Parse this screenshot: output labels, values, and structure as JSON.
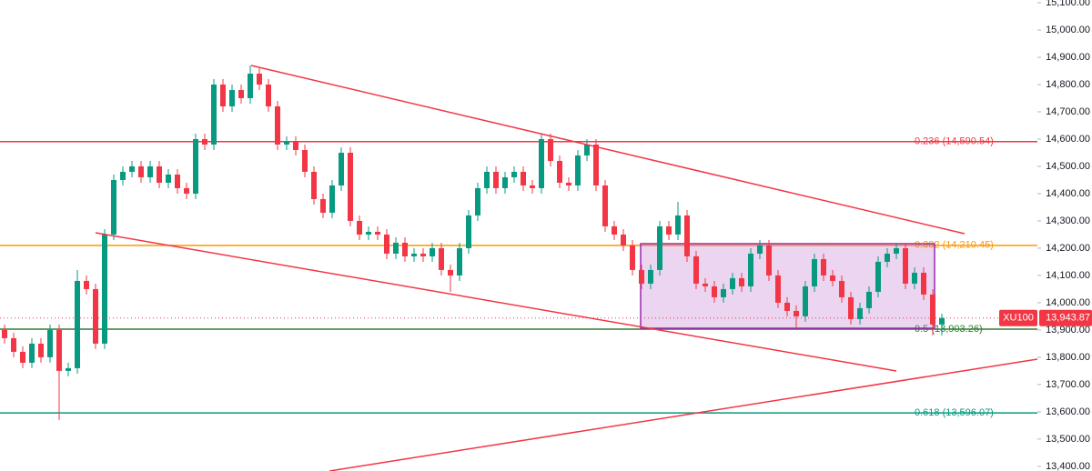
{
  "chart_data": {
    "type": "candlestick",
    "ylim": [
      13383,
      15110
    ],
    "yticks": [
      {
        "value": 13400,
        "label": "13,400.00"
      },
      {
        "value": 13500,
        "label": "13,500.00"
      },
      {
        "value": 13600,
        "label": "13,600.00"
      },
      {
        "value": 13700,
        "label": "13,700.00"
      },
      {
        "value": 13800,
        "label": "13,800.00"
      },
      {
        "value": 13900,
        "label": "13,900.00"
      },
      {
        "value": 14000,
        "label": "14,000.00"
      },
      {
        "value": 14100,
        "label": "14,100.00"
      },
      {
        "value": 14200,
        "label": "14,200.00"
      },
      {
        "value": 14300,
        "label": "14,300.00"
      },
      {
        "value": 14400,
        "label": "14,400.00"
      },
      {
        "value": 14500,
        "label": "14,500.00"
      },
      {
        "value": 14600,
        "label": "14,600.00"
      },
      {
        "value": 14700,
        "label": "14,700.00"
      },
      {
        "value": 14800,
        "label": "14,800.00"
      },
      {
        "value": 14900,
        "label": "14,900.00"
      },
      {
        "value": 15000,
        "label": "15,000.00"
      },
      {
        "value": 15100,
        "label": "15,100.00"
      }
    ],
    "up_color": "#089981",
    "down_color": "#f23645",
    "series": [
      {
        "open": [
          13900,
          13870,
          13820,
          13780,
          13850,
          13800,
          13900,
          13750,
          13760,
          14080,
          14050,
          13850,
          14250,
          14450,
          14480,
          14500,
          14460,
          14500,
          14440,
          14470,
          14420,
          14400,
          14600,
          14580,
          14800,
          14720,
          14780,
          14750,
          14840,
          14800,
          14720,
          14580,
          14590,
          14560,
          14480,
          14380,
          14330,
          14430,
          14550,
          14300,
          14250,
          14260,
          14250,
          14180,
          14220,
          14170,
          14180,
          14170,
          14200,
          14120,
          14100,
          14200,
          14320,
          14420,
          14480,
          14420,
          14460,
          14480,
          14430,
          14420,
          14600,
          14520,
          14440,
          14430,
          14540,
          14580,
          14430,
          14280,
          14250,
          14210,
          14120,
          14070,
          14120,
          14280,
          14250,
          14320,
          14170,
          14070,
          14060,
          14020,
          14050,
          14090,
          14060,
          14180,
          14210,
          14100,
          14000,
          13970,
          13950,
          14060,
          14160,
          14100,
          14080,
          14020,
          13940,
          13980,
          14040,
          14150,
          14180,
          14200,
          14070,
          14110,
          14030,
          13920
        ],
        "high": [
          13920,
          13890,
          13840,
          13870,
          13870,
          13920,
          13920,
          13780,
          14120,
          14100,
          14070,
          14270,
          14470,
          14500,
          14520,
          14520,
          14520,
          14520,
          14490,
          14490,
          14440,
          14620,
          14620,
          14820,
          14820,
          14800,
          14800,
          14870,
          14860,
          14820,
          14740,
          14610,
          14610,
          14580,
          14500,
          14400,
          14450,
          14570,
          14570,
          14320,
          14280,
          14280,
          14270,
          14240,
          14240,
          14200,
          14200,
          14220,
          14220,
          14140,
          14220,
          14340,
          14440,
          14500,
          14500,
          14480,
          14500,
          14500,
          14450,
          14620,
          14620,
          14540,
          14460,
          14560,
          14600,
          14600,
          14450,
          14300,
          14270,
          14230,
          14140,
          14140,
          14300,
          14300,
          14370,
          14340,
          14190,
          14090,
          14080,
          14070,
          14110,
          14110,
          14200,
          14230,
          14230,
          14120,
          14020,
          13990,
          14080,
          14180,
          14180,
          14120,
          14100,
          14040,
          14000,
          14060,
          14170,
          14200,
          14220,
          14220,
          14130,
          14130,
          14050,
          13960
        ],
        "low": [
          13850,
          13800,
          13760,
          13760,
          13780,
          13780,
          13570,
          13730,
          13740,
          14030,
          13830,
          13830,
          14230,
          14430,
          14460,
          14440,
          14440,
          14420,
          14420,
          14400,
          14380,
          14380,
          14560,
          14560,
          14700,
          14700,
          14730,
          14730,
          14780,
          14700,
          14560,
          14560,
          14540,
          14460,
          14360,
          14310,
          14310,
          14410,
          14280,
          14230,
          14230,
          14230,
          14160,
          14160,
          14150,
          14150,
          14150,
          14150,
          14100,
          14040,
          14080,
          14180,
          14300,
          14400,
          14400,
          14400,
          14440,
          14410,
          14400,
          14400,
          14500,
          14420,
          14410,
          14410,
          14520,
          14410,
          14260,
          14230,
          14190,
          14100,
          14050,
          14050,
          14100,
          14230,
          14230,
          14150,
          14050,
          14040,
          14000,
          14000,
          14030,
          14040,
          14040,
          14160,
          14080,
          13980,
          13950,
          13900,
          13930,
          14040,
          14080,
          14060,
          14000,
          13920,
          13920,
          13960,
          14020,
          14130,
          14160,
          14050,
          14050,
          14010,
          13880,
          13880
        ],
        "close": [
          13870,
          13820,
          13780,
          13850,
          13800,
          13900,
          13750,
          13760,
          14080,
          14050,
          13850,
          14250,
          14450,
          14480,
          14500,
          14460,
          14500,
          14440,
          14470,
          14420,
          14400,
          14600,
          14580,
          14800,
          14720,
          14780,
          14750,
          14840,
          14800,
          14720,
          14580,
          14590,
          14560,
          14480,
          14380,
          14330,
          14430,
          14550,
          14300,
          14250,
          14260,
          14250,
          14180,
          14220,
          14170,
          14180,
          14170,
          14200,
          14120,
          14100,
          14200,
          14320,
          14420,
          14480,
          14420,
          14460,
          14480,
          14430,
          14420,
          14600,
          14520,
          14440,
          14430,
          14540,
          14580,
          14430,
          14280,
          14250,
          14210,
          14120,
          14070,
          14120,
          14280,
          14250,
          14320,
          14170,
          14070,
          14060,
          14020,
          14050,
          14090,
          14060,
          14180,
          14210,
          14100,
          14000,
          13970,
          13950,
          14060,
          14160,
          14100,
          14080,
          14020,
          13940,
          13980,
          14040,
          14150,
          14180,
          14200,
          14070,
          14110,
          14030,
          13920,
          13943.87
        ]
      }
    ],
    "levels": [
      {
        "value": 14590.54,
        "label": "0.236 (14,590.54)",
        "color": "#f23645"
      },
      {
        "value": 14210.45,
        "label": "0.382 (14,210.45)",
        "color": "#ff9800"
      },
      {
        "value": 13903.26,
        "label": "0.5 (13,903.26)",
        "color": "#2e7d32"
      },
      {
        "value": 13596.07,
        "label": "0.618 (13,596.07)",
        "color": "#089981"
      }
    ],
    "price_tag": {
      "symbol": "XU100",
      "price": {
        "value": 13943.87,
        "label": "13,943.87"
      },
      "color": "#f23645"
    }
  }
}
